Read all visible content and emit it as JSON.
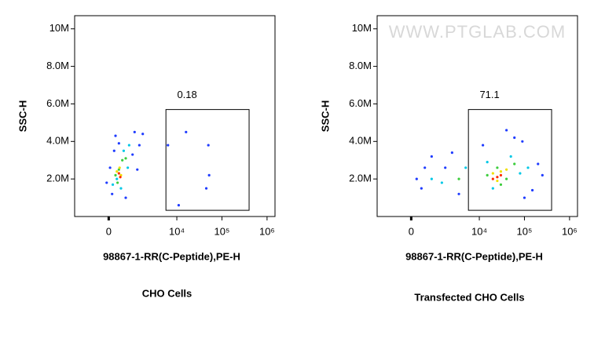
{
  "chart_data": [
    {
      "type": "scatter",
      "title": "CHO Cells",
      "xlabel": "98867-1-RR(C-Peptide),PE-H",
      "ylabel": "SSC-H",
      "xscale": "biexponential",
      "xlim": [
        -5000,
        1500000
      ],
      "ylim": [
        0,
        10700000
      ],
      "xticks": [
        0,
        {
          "value": 10000,
          "label": "10⁴"
        },
        {
          "value": 100000,
          "label": "10⁵"
        },
        {
          "value": 1000000,
          "label": "10⁶"
        }
      ],
      "yticks": [
        {
          "value": 2000000,
          "label": "2.0M"
        },
        {
          "value": 4000000,
          "label": "4.0M"
        },
        {
          "value": 6000000,
          "label": "6.0M"
        },
        {
          "value": 8000000,
          "label": "8.0M"
        },
        {
          "value": 10000000,
          "label": "10M"
        }
      ],
      "gate": {
        "x": [
          8400,
          400000
        ],
        "y": [
          330000,
          5700000
        ],
        "label": "0.18"
      },
      "groups": [
        {
          "color": "#1f3cff",
          "x": [
            500,
            1000,
            3800,
            4500,
            200,
            2500,
            4200,
            -300,
            1500,
            3500,
            5000,
            800,
            16000,
            50000,
            8700,
            52000,
            11000,
            45000
          ],
          "y": [
            1200000,
            4300000,
            4500000,
            3800000,
            2600000,
            1000000,
            2500000,
            1800000,
            3900000,
            3300000,
            4400000,
            3500000,
            4500000,
            3800000,
            3800000,
            2200000,
            600000,
            1500000
          ]
        },
        {
          "color": "#00c8e6",
          "x": [
            1200,
            2200,
            3000,
            1800,
            2800,
            600
          ],
          "y": [
            2000000,
            3500000,
            3800000,
            1500000,
            2600000,
            1700000
          ]
        },
        {
          "color": "#3ccd3c",
          "x": [
            1500,
            2000,
            1000,
            2500,
            1300
          ],
          "y": [
            2500000,
            3000000,
            2200000,
            3100000,
            1800000
          ]
        },
        {
          "color": "#f0e000",
          "x": [
            1600,
            1800,
            1200
          ],
          "y": [
            2600000,
            2200000,
            2400000
          ]
        },
        {
          "color": "#ff2a00",
          "x": [
            1500,
            1700
          ],
          "y": [
            2300000,
            2100000
          ]
        }
      ]
    },
    {
      "type": "scatter",
      "title": "Transfected CHO Cells",
      "xlabel": "98867-1-RR(C-Peptide),PE-H",
      "ylabel": "SSC-H",
      "watermark": "WWW.PTGLAB.COM",
      "xscale": "biexponential",
      "xlim": [
        -5000,
        1500000
      ],
      "ylim": [
        0,
        10700000
      ],
      "xticks": [
        0,
        {
          "value": 10000,
          "label": "10⁴"
        },
        {
          "value": 100000,
          "label": "10⁵"
        },
        {
          "value": 1000000,
          "label": "10⁶"
        }
      ],
      "yticks": [
        {
          "value": 2000000,
          "label": "2.0M"
        },
        {
          "value": 4000000,
          "label": "4.0M"
        },
        {
          "value": 6000000,
          "label": "6.0M"
        },
        {
          "value": 8000000,
          "label": "8.0M"
        },
        {
          "value": 10000000,
          "label": "10M"
        }
      ],
      "gate": {
        "x": [
          8400,
          400000
        ],
        "y": [
          330000,
          5700000
        ],
        "label": "71.1"
      },
      "groups": [
        {
          "color": "#1f3cff",
          "x": [
            1500,
            3000,
            5000,
            800,
            7000,
            12000,
            200000,
            150000,
            40000,
            60000,
            90000,
            2000,
            6000,
            100000,
            250000
          ],
          "y": [
            1500000,
            3200000,
            2600000,
            2000000,
            1200000,
            3800000,
            2800000,
            1400000,
            4600000,
            4200000,
            4000000,
            2600000,
            3400000,
            1000000,
            2200000
          ]
        },
        {
          "color": "#00c8e6",
          "x": [
            3000,
            8000,
            15000,
            50000,
            80000,
            20000,
            4500,
            120000
          ],
          "y": [
            2000000,
            2600000,
            2900000,
            3200000,
            2300000,
            1500000,
            1800000,
            2600000
          ]
        },
        {
          "color": "#3ccd3c",
          "x": [
            15000,
            25000,
            40000,
            60000,
            30000,
            7000
          ],
          "y": [
            2200000,
            2600000,
            2000000,
            2800000,
            1700000,
            2000000
          ]
        },
        {
          "color": "#f0e000",
          "x": [
            20000,
            30000,
            40000,
            25000
          ],
          "y": [
            2300000,
            2400000,
            2500000,
            1900000
          ]
        },
        {
          "color": "#ff2a00",
          "x": [
            25000,
            30000,
            20000
          ],
          "y": [
            2100000,
            2200000,
            2000000
          ]
        }
      ]
    }
  ]
}
